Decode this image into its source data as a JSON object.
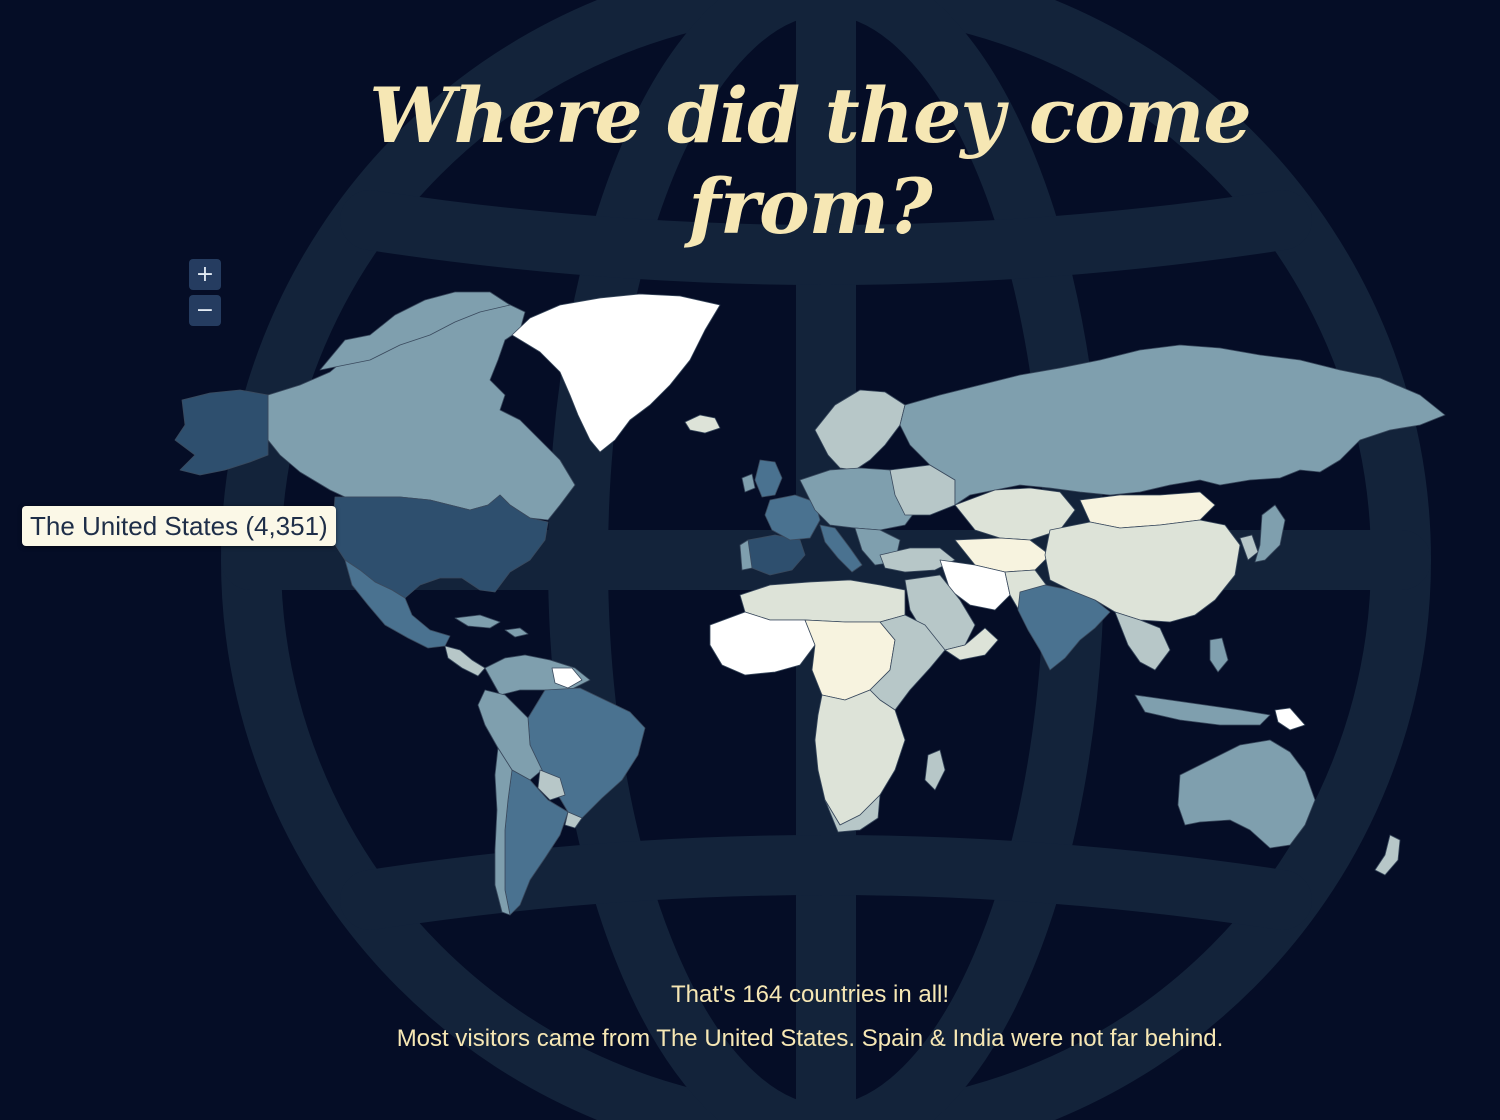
{
  "title": "Where did they come from?",
  "zoom": {
    "in_label": "+",
    "out_label": "−"
  },
  "tooltip": {
    "country": "The United States",
    "count": "4,351",
    "text": "The United States (4,351)"
  },
  "summary": {
    "line1": "That's 164 countries in all!",
    "line2": "Most visitors came from The United States. Spain & India were not far behind."
  },
  "colors": {
    "background": "#050d26",
    "globe_lines": "#13233a",
    "title": "#f6e7b4",
    "highest": "#2e4f6e",
    "high": "#4a7290",
    "medium": "#7f9fae",
    "low": "#b7c7c8",
    "lower": "#dde3d8",
    "lowest": "#f7f3df",
    "none": "#ffffff"
  },
  "icons": {
    "globe_background": "globe-icon"
  }
}
